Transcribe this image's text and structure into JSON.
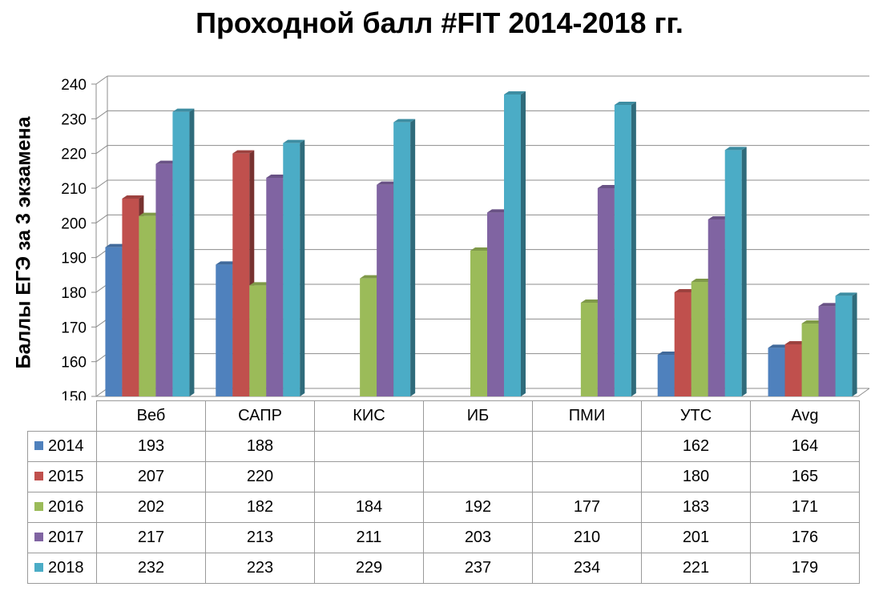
{
  "chart_data": {
    "type": "bar",
    "title": "Проходной балл  #FIT 2014-2018 гг.",
    "ylabel": "Баллы ЕГЭ за 3 экзамена",
    "xlabel": "",
    "ylim": [
      150,
      240
    ],
    "yticks": [
      "150",
      "160",
      "170",
      "180",
      "190",
      "200",
      "210",
      "220",
      "230",
      "240"
    ],
    "grid": true,
    "legend": "table",
    "categories": [
      "Веб",
      "САПР",
      "КИС",
      "ИБ",
      "ПМИ",
      "УТС",
      "Avg"
    ],
    "series": [
      {
        "name": "2014",
        "color": "#4F81BD",
        "values": [
          193,
          188,
          null,
          null,
          null,
          162,
          164
        ],
        "labels": [
          "193",
          "188",
          "",
          "",
          "",
          "162",
          "164"
        ]
      },
      {
        "name": "2015",
        "color": "#C0504D",
        "values": [
          207,
          220,
          null,
          null,
          null,
          180,
          165
        ],
        "labels": [
          "207",
          "220",
          "",
          "",
          "",
          "180",
          "165"
        ]
      },
      {
        "name": "2016",
        "color": "#9BBB59",
        "values": [
          202,
          182,
          184,
          192,
          177,
          183,
          171
        ],
        "labels": [
          "202",
          "182",
          "184",
          "192",
          "177",
          "183",
          "171"
        ]
      },
      {
        "name": "2017",
        "color": "#8064A2",
        "values": [
          217,
          213,
          211,
          203,
          210,
          201,
          176
        ],
        "labels": [
          "217",
          "213",
          "211",
          "203",
          "210",
          "201",
          "176"
        ]
      },
      {
        "name": "2018",
        "color": "#4BACC6",
        "values": [
          232,
          223,
          229,
          237,
          234,
          221,
          179
        ],
        "labels": [
          "232",
          "223",
          "229",
          "237",
          "234",
          "221",
          "179"
        ]
      }
    ]
  }
}
